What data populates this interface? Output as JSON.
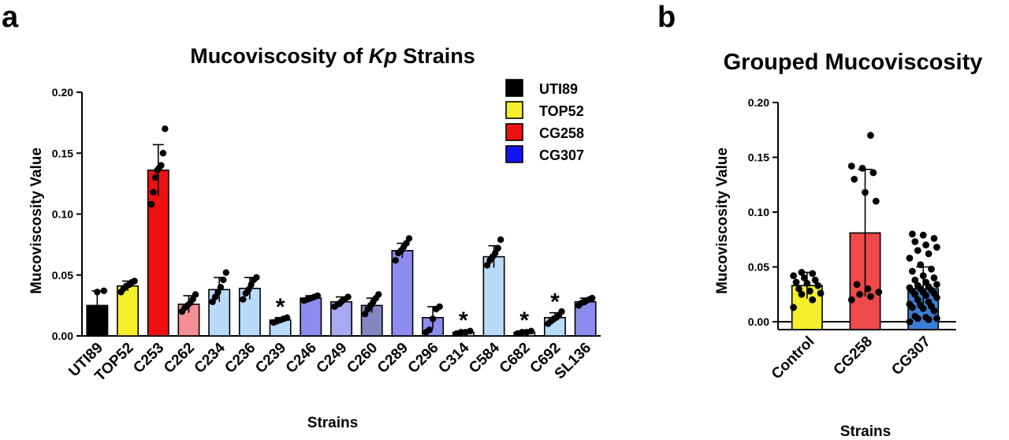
{
  "panel_a": {
    "letter": "a",
    "title_pre": "Mucoviscosity of ",
    "title_italic": "Kp",
    "title_post": " Strains"
  },
  "panel_b": {
    "letter": "b"
  },
  "colors": {
    "UTI89": "#000000",
    "TOP52": "#f5ef2a",
    "CG258_main": "#ee1111",
    "CG258_light": "#f49095",
    "CG307_main": "#8c8cee",
    "CG307_light": "#b9dbfa",
    "CG307_mid": "#a9a9f2",
    "CG307_dark": "#8585c4",
    "CG307_legend": "#1414f0",
    "grouped_control": "#f5ef2a",
    "grouped_cg258": "#ee4a4a",
    "grouped_cg307": "#3b7fd4"
  },
  "chart_data": [
    {
      "type": "bar",
      "title": "Mucoviscosity of Kp Strains",
      "xlabel": "Strains",
      "ylabel": "Mucoviscosity Value",
      "ylim": [
        0,
        0.2
      ],
      "yticks": [
        "0.00",
        "0.05",
        "0.10",
        "0.15",
        "0.20"
      ],
      "legend": {
        "placement": "top-right",
        "entries": [
          {
            "label": "UTI89",
            "color": "#000000"
          },
          {
            "label": "TOP52",
            "color": "#f5ef2a"
          },
          {
            "label": "CG258",
            "color": "#ee1111"
          },
          {
            "label": "CG307",
            "color": "#1414f0"
          }
        ]
      },
      "categories": [
        "UTI89",
        "TOP52",
        "C253",
        "C262",
        "C234",
        "C236",
        "C239",
        "C246",
        "C249",
        "C260",
        "C289",
        "C296",
        "C314",
        "C584",
        "C682",
        "C692",
        "SL136"
      ],
      "values": [
        0.025,
        0.041,
        0.136,
        0.026,
        0.038,
        0.039,
        0.013,
        0.031,
        0.028,
        0.025,
        0.07,
        0.015,
        0.003,
        0.065,
        0.003,
        0.015,
        0.028
      ],
      "error": [
        0.012,
        0.004,
        0.021,
        0.007,
        0.01,
        0.009,
        0.002,
        0.002,
        0.004,
        0.006,
        0.006,
        0.009,
        0.001,
        0.009,
        0.001,
        0.004,
        0.003
      ],
      "bar_colors": [
        "#000000",
        "#f5ef2a",
        "#ee1111",
        "#f49095",
        "#b9dbfa",
        "#b9dbfa",
        "#b9dbfa",
        "#8c8cee",
        "#a9a9f2",
        "#8585c4",
        "#8c8cee",
        "#8c8cee",
        "#b9dbfa",
        "#b9dbfa",
        "#b9dbfa",
        "#b9dbfa",
        "#8c8cee"
      ],
      "significance": [
        "",
        "",
        "",
        "",
        "",
        "",
        "*",
        "",
        "",
        "",
        "",
        "",
        "*",
        "",
        "*",
        "*",
        ""
      ],
      "points": [
        [
          0.013,
          0.036,
          0.037
        ],
        [
          0.036,
          0.039,
          0.041,
          0.042,
          0.044,
          0.045
        ],
        [
          0.108,
          0.118,
          0.13,
          0.136,
          0.138,
          0.14,
          0.15,
          0.17
        ],
        [
          0.02,
          0.023,
          0.025,
          0.027,
          0.03,
          0.034
        ],
        [
          0.028,
          0.032,
          0.036,
          0.04,
          0.046,
          0.052
        ],
        [
          0.03,
          0.035,
          0.038,
          0.042,
          0.046,
          0.048
        ],
        [
          0.011,
          0.012,
          0.013,
          0.014,
          0.015
        ],
        [
          0.029,
          0.03,
          0.031,
          0.032,
          0.033
        ],
        [
          0.024,
          0.026,
          0.028,
          0.03,
          0.032
        ],
        [
          0.018,
          0.022,
          0.025,
          0.028,
          0.031,
          0.034
        ],
        [
          0.062,
          0.068,
          0.07,
          0.073,
          0.076,
          0.08
        ],
        [
          0.003,
          0.005,
          0.014,
          0.022,
          0.024
        ],
        [
          0.002,
          0.003,
          0.003,
          0.004
        ],
        [
          0.058,
          0.062,
          0.065,
          0.068,
          0.072,
          0.079
        ],
        [
          0.002,
          0.003,
          0.003,
          0.004
        ],
        [
          0.01,
          0.012,
          0.014,
          0.015,
          0.017,
          0.02
        ],
        [
          0.025,
          0.027,
          0.028,
          0.029,
          0.03,
          0.031
        ]
      ]
    },
    {
      "type": "bar",
      "title": "Grouped Mucoviscosity",
      "xlabel": "Strains",
      "ylabel": "Mucoviscosity Value",
      "ylim": [
        0,
        0.2
      ],
      "yticks": [
        "0.00",
        "0.05",
        "0.10",
        "0.15",
        "0.20"
      ],
      "categories": [
        "Control",
        "CG258",
        "CG307"
      ],
      "values": [
        0.033,
        0.081,
        0.03
      ],
      "error": [
        0.012,
        0.058,
        0.02
      ],
      "bar_colors": [
        "#f5ef2a",
        "#ee4a4a",
        "#3b7fd4"
      ],
      "points": [
        [
          0.013,
          0.02,
          0.025,
          0.026,
          0.028,
          0.03,
          0.033,
          0.035,
          0.036,
          0.038,
          0.04,
          0.042,
          0.044,
          0.045
        ],
        [
          0.02,
          0.023,
          0.025,
          0.027,
          0.03,
          0.034,
          0.11,
          0.118,
          0.13,
          0.136,
          0.14,
          0.142,
          0.17
        ],
        [
          0.0,
          0.002,
          0.003,
          0.003,
          0.004,
          0.005,
          0.01,
          0.012,
          0.013,
          0.014,
          0.015,
          0.016,
          0.018,
          0.02,
          0.022,
          0.024,
          0.025,
          0.026,
          0.027,
          0.028,
          0.029,
          0.03,
          0.031,
          0.032,
          0.033,
          0.034,
          0.036,
          0.038,
          0.04,
          0.042,
          0.046,
          0.048,
          0.052,
          0.058,
          0.062,
          0.065,
          0.068,
          0.07,
          0.073,
          0.076,
          0.079,
          0.08
        ]
      ]
    }
  ]
}
